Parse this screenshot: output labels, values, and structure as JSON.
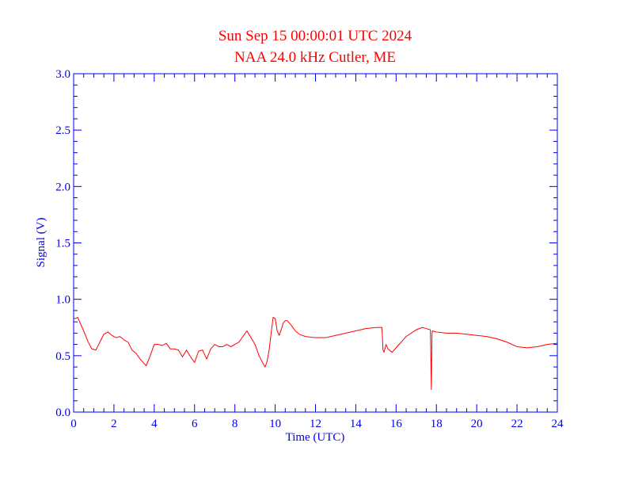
{
  "chart_data": {
    "type": "line",
    "title": "Sun Sep 15 00:00:01 UTC 2024",
    "subtitle": "NAA 24.0 kHz Cutler, ME",
    "xlabel": "Time (UTC)",
    "ylabel": "Signal (V)",
    "xlim": [
      0,
      24
    ],
    "ylim": [
      0,
      3.0
    ],
    "xticks": [
      "0",
      "2",
      "4",
      "6",
      "8",
      "10",
      "12",
      "14",
      "16",
      "18",
      "20",
      "22",
      "24"
    ],
    "yticks": [
      "0.0",
      "0.5",
      "1.0",
      "1.5",
      "2.0",
      "2.5",
      "3.0"
    ],
    "grid": false,
    "colors": {
      "series": "#ff0000",
      "axes": "#0000ee",
      "title": "#ff0000"
    },
    "series": [
      {
        "x": [
          0.0,
          0.1,
          0.2,
          0.3,
          0.5,
          0.7,
          0.9,
          1.1,
          1.3,
          1.5,
          1.7,
          1.9,
          2.1,
          2.3,
          2.5,
          2.7,
          2.9,
          3.1,
          3.3,
          3.5,
          3.6,
          3.8,
          4.0,
          4.2,
          4.4,
          4.6,
          4.8,
          5.0,
          5.2,
          5.4,
          5.6,
          5.8,
          6.0,
          6.2,
          6.4,
          6.6,
          6.8,
          7.0,
          7.2,
          7.4,
          7.6,
          7.8,
          8.0,
          8.2,
          8.4,
          8.6,
          8.8,
          9.0,
          9.2,
          9.4,
          9.5,
          9.6,
          9.7,
          9.8,
          9.9,
          10.0,
          10.1,
          10.2,
          10.3,
          10.4,
          10.5,
          10.6,
          10.8,
          11.0,
          11.2,
          11.5,
          12.0,
          12.5,
          13.0,
          13.5,
          14.0,
          14.5,
          15.0,
          15.3,
          15.35,
          15.4,
          15.5,
          15.6,
          15.8,
          16.0,
          16.5,
          17.0,
          17.3,
          17.5,
          17.7,
          17.75,
          17.78,
          17.8,
          18.0,
          18.5,
          19.0,
          19.5,
          20.0,
          20.5,
          21.0,
          21.5,
          22.0,
          22.5,
          23.0,
          23.5,
          24.0
        ],
        "y": [
          0.83,
          0.83,
          0.84,
          0.8,
          0.72,
          0.63,
          0.56,
          0.55,
          0.62,
          0.69,
          0.71,
          0.68,
          0.66,
          0.67,
          0.64,
          0.62,
          0.55,
          0.52,
          0.47,
          0.43,
          0.41,
          0.5,
          0.6,
          0.6,
          0.59,
          0.61,
          0.56,
          0.56,
          0.55,
          0.49,
          0.55,
          0.49,
          0.44,
          0.54,
          0.55,
          0.47,
          0.56,
          0.6,
          0.58,
          0.58,
          0.6,
          0.58,
          0.6,
          0.62,
          0.67,
          0.72,
          0.66,
          0.6,
          0.5,
          0.43,
          0.4,
          0.45,
          0.55,
          0.7,
          0.84,
          0.83,
          0.72,
          0.68,
          0.73,
          0.79,
          0.81,
          0.81,
          0.77,
          0.72,
          0.69,
          0.67,
          0.66,
          0.66,
          0.68,
          0.7,
          0.72,
          0.74,
          0.75,
          0.75,
          0.55,
          0.53,
          0.6,
          0.56,
          0.53,
          0.57,
          0.67,
          0.73,
          0.75,
          0.74,
          0.73,
          0.2,
          0.69,
          0.72,
          0.71,
          0.7,
          0.7,
          0.69,
          0.68,
          0.67,
          0.65,
          0.62,
          0.58,
          0.57,
          0.58,
          0.6,
          0.61
        ]
      }
    ]
  }
}
